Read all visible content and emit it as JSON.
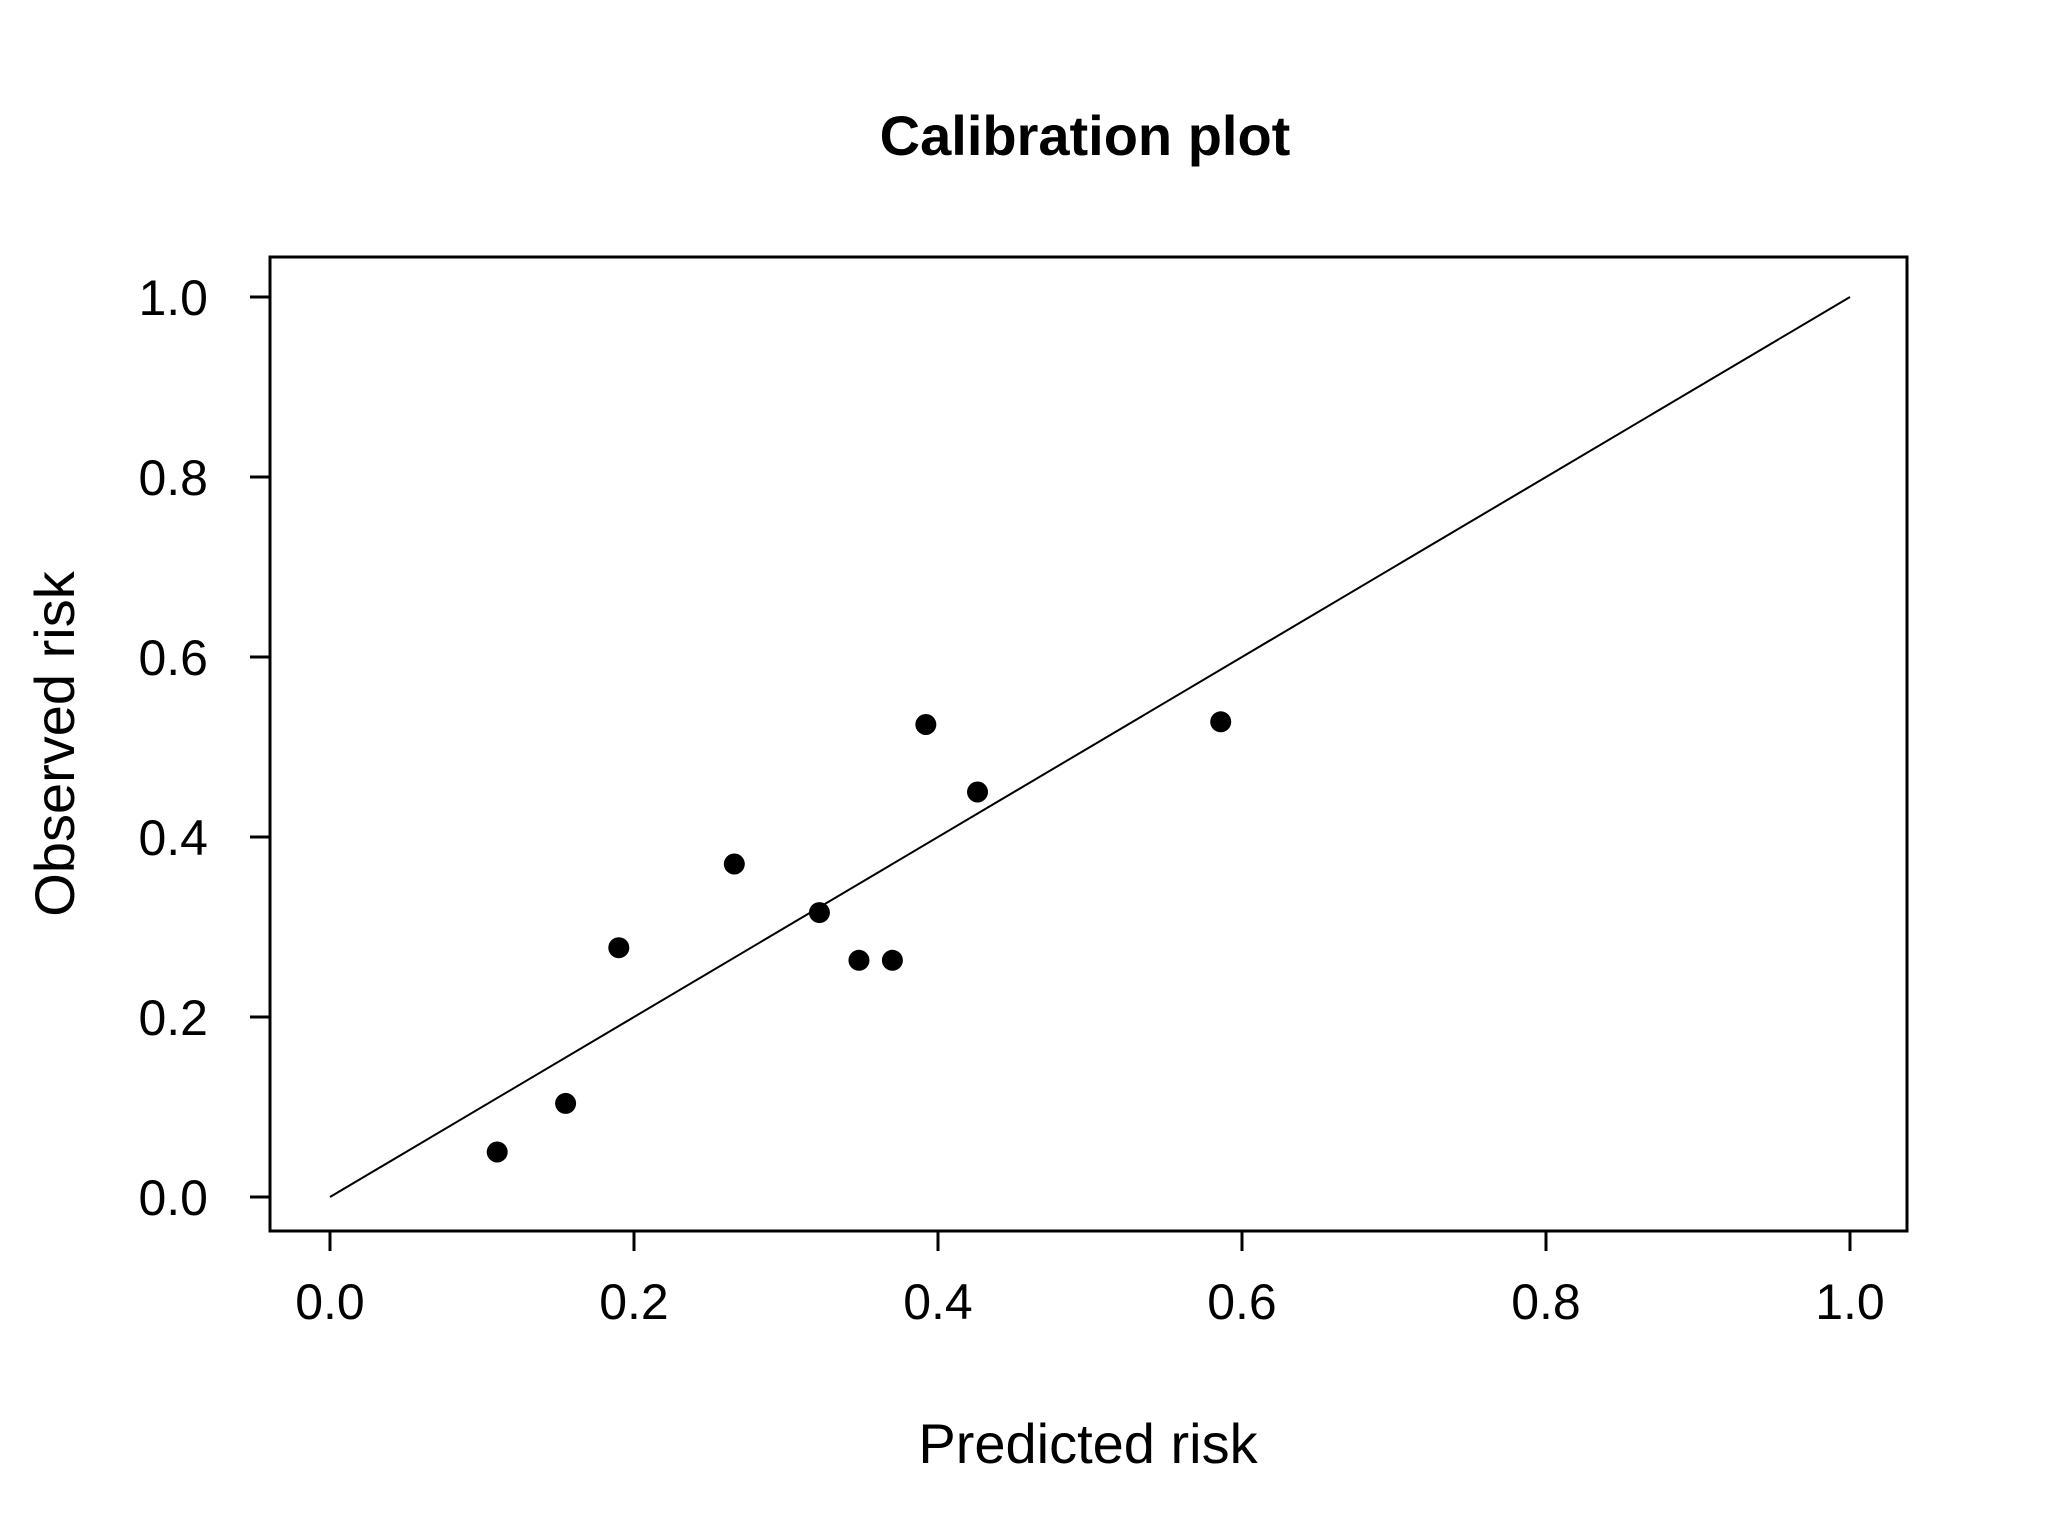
{
  "chart_data": {
    "type": "scatter",
    "title": "Calibration plot",
    "xlabel": "Predicted risk",
    "ylabel": "Observed risk",
    "xlim": [
      0.0,
      1.0
    ],
    "ylim": [
      0.0,
      1.0
    ],
    "x_ticks": [
      "0.0",
      "0.2",
      "0.4",
      "0.6",
      "0.8",
      "1.0"
    ],
    "y_ticks": [
      "0.0",
      "0.2",
      "0.4",
      "0.6",
      "0.8",
      "1.0"
    ],
    "grid": false,
    "legend": "none",
    "reference_line": {
      "x": [
        0.0,
        1.0
      ],
      "y": [
        0.0,
        1.0
      ]
    },
    "points": [
      {
        "x": 0.11,
        "y": 0.05
      },
      {
        "x": 0.155,
        "y": 0.104
      },
      {
        "x": 0.19,
        "y": 0.277
      },
      {
        "x": 0.266,
        "y": 0.37
      },
      {
        "x": 0.322,
        "y": 0.316
      },
      {
        "x": 0.348,
        "y": 0.263
      },
      {
        "x": 0.37,
        "y": 0.263
      },
      {
        "x": 0.392,
        "y": 0.525
      },
      {
        "x": 0.426,
        "y": 0.45
      },
      {
        "x": 0.586,
        "y": 0.528
      }
    ],
    "colors": {
      "points": "#000000",
      "line": "#000000",
      "frame": "#000000"
    }
  }
}
